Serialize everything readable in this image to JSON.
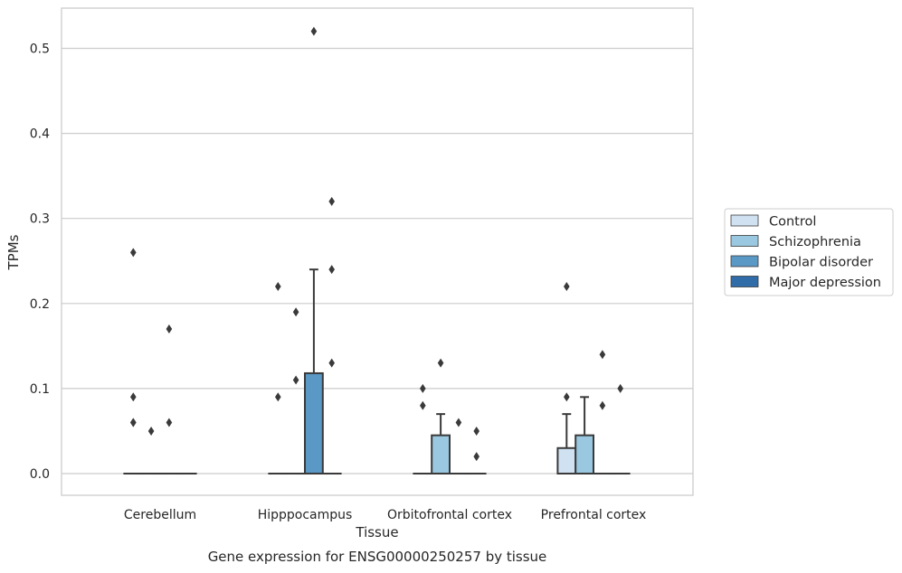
{
  "caption": "Gene expression for ENSG00000250257 by tissue",
  "chart_data": {
    "type": "box",
    "xlabel": "Tissue",
    "ylabel": "TPMs",
    "ylim": [
      -0.025,
      0.547
    ],
    "yticks": [
      "0.0",
      "0.1",
      "0.2",
      "0.3",
      "0.4",
      "0.5"
    ],
    "ytick_values": [
      0.0,
      0.1,
      0.2,
      0.3,
      0.4,
      0.5
    ],
    "grid": true,
    "legend_position": "right",
    "categories": [
      "Cerebellum",
      "Hipppocampus",
      "Orbitofrontal cortex",
      "Prefrontal cortex"
    ],
    "series": [
      {
        "name": "Control",
        "color": "#d0e2f2",
        "boxes": [
          {
            "q1": 0,
            "median": 0,
            "q3": 0,
            "whisker_low": 0,
            "whisker_high": 0,
            "outliers": [
              0.06,
              0.26,
              0.09,
              0.06
            ]
          },
          {
            "q1": 0,
            "median": 0,
            "q3": 0,
            "whisker_low": 0,
            "whisker_high": 0,
            "outliers": [
              0.09,
              0.22
            ]
          },
          {
            "q1": 0,
            "median": 0,
            "q3": 0,
            "whisker_low": 0,
            "whisker_high": 0,
            "outliers": [
              0.08,
              0.1
            ]
          },
          {
            "q1": 0,
            "median": 0,
            "q3": 0.03,
            "whisker_low": 0,
            "whisker_high": 0.07,
            "outliers": [
              0.22,
              0.09
            ]
          }
        ]
      },
      {
        "name": "Schizophrenia",
        "color": "#9ac8e0",
        "boxes": [
          {
            "q1": 0,
            "median": 0,
            "q3": 0,
            "whisker_low": 0,
            "whisker_high": 0,
            "outliers": [
              0.05
            ]
          },
          {
            "q1": 0,
            "median": 0,
            "q3": 0,
            "whisker_low": 0,
            "whisker_high": 0,
            "outliers": [
              0.19,
              0.11
            ]
          },
          {
            "q1": 0,
            "median": 0,
            "q3": 0.045,
            "whisker_low": 0,
            "whisker_high": 0.07,
            "outliers": [
              0.13
            ]
          },
          {
            "q1": 0,
            "median": 0,
            "q3": 0.045,
            "whisker_low": 0,
            "whisker_high": 0.09,
            "outliers": []
          }
        ]
      },
      {
        "name": "Bipolar disorder",
        "color": "#5a98c5",
        "boxes": [
          {
            "q1": 0,
            "median": 0,
            "q3": 0,
            "whisker_low": 0,
            "whisker_high": 0,
            "outliers": [
              0.17,
              0.06
            ]
          },
          {
            "q1": 0,
            "median": 0,
            "q3": 0.118,
            "whisker_low": 0,
            "whisker_high": 0.24,
            "outliers": [
              0.52
            ]
          },
          {
            "q1": 0,
            "median": 0,
            "q3": 0,
            "whisker_low": 0,
            "whisker_high": 0,
            "outliers": [
              0.06
            ]
          },
          {
            "q1": 0,
            "median": 0,
            "q3": 0,
            "whisker_low": 0,
            "whisker_high": 0,
            "outliers": [
              0.14,
              0.08
            ]
          }
        ]
      },
      {
        "name": "Major depression",
        "color": "#2f6ca8",
        "boxes": [
          {
            "q1": 0,
            "median": 0,
            "q3": 0,
            "whisker_low": 0,
            "whisker_high": 0,
            "outliers": []
          },
          {
            "q1": 0,
            "median": 0,
            "q3": 0,
            "whisker_low": 0,
            "whisker_high": 0,
            "outliers": [
              0.32,
              0.24,
              0.13
            ]
          },
          {
            "q1": 0,
            "median": 0,
            "q3": 0,
            "whisker_low": 0,
            "whisker_high": 0,
            "outliers": [
              0.05,
              0.02
            ]
          },
          {
            "q1": 0,
            "median": 0,
            "q3": 0,
            "whisker_low": 0,
            "whisker_high": 0,
            "outliers": [
              0.1
            ]
          }
        ]
      }
    ]
  }
}
